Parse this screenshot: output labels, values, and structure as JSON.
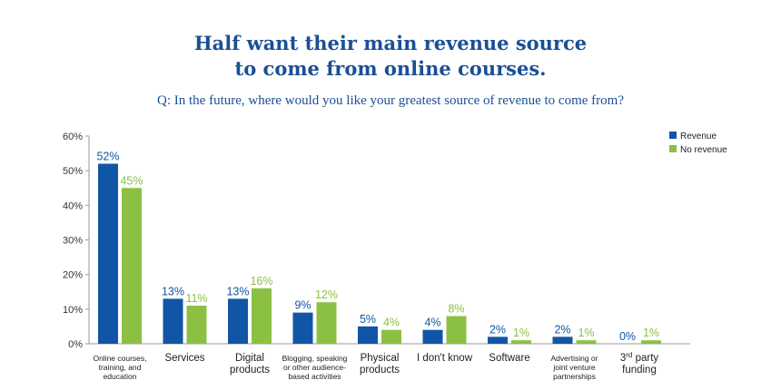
{
  "chart_data": {
    "type": "bar",
    "title_line1": "Half want their main revenue source",
    "title_line2": "to come from online courses.",
    "subtitle": "Q: In the future, where would you like your greatest source of revenue to come from?",
    "yticks": [
      "0%",
      "10%",
      "20%",
      "30%",
      "40%",
      "50%",
      "60%"
    ],
    "ylim": [
      0,
      60
    ],
    "categories": [
      [
        "Online courses,",
        "training, and",
        "education"
      ],
      [
        "Services"
      ],
      [
        "Digital",
        "products"
      ],
      [
        "Blogging, speaking",
        "or other audience-",
        "based activities"
      ],
      [
        "Physical",
        "products"
      ],
      [
        "I don't know"
      ],
      [
        "Software"
      ],
      [
        "Advertising or",
        "joint venture",
        "partnerships"
      ],
      [
        "3rd party",
        "funding"
      ]
    ],
    "series": [
      {
        "name": "Revenue",
        "color": "#1155a6",
        "values": [
          52,
          13,
          13,
          9,
          5,
          4,
          2,
          2,
          0
        ]
      },
      {
        "name": "No revenue",
        "color": "#8cc043",
        "values": [
          45,
          11,
          16,
          12,
          4,
          8,
          1,
          1,
          1
        ]
      }
    ],
    "legend_position": "top-right"
  }
}
